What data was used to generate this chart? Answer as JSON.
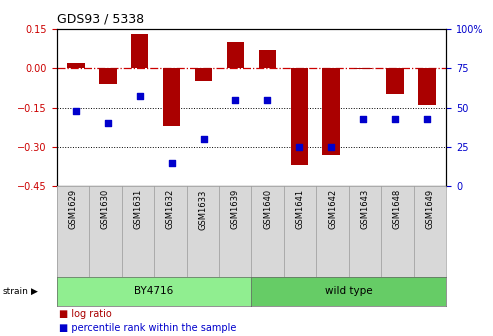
{
  "title": "GDS93 / 5338",
  "samples": [
    "GSM1629",
    "GSM1630",
    "GSM1631",
    "GSM1632",
    "GSM1633",
    "GSM1639",
    "GSM1640",
    "GSM1641",
    "GSM1642",
    "GSM1643",
    "GSM1648",
    "GSM1649"
  ],
  "log_ratio": [
    0.02,
    -0.06,
    0.13,
    -0.22,
    -0.05,
    0.1,
    0.07,
    -0.37,
    -0.33,
    -0.005,
    -0.1,
    -0.14
  ],
  "percentile": [
    48,
    40,
    57,
    15,
    30,
    55,
    55,
    25,
    25,
    43,
    43,
    43
  ],
  "strain_groups": [
    {
      "label": "BY4716",
      "start": 0,
      "end": 6,
      "color": "#90EE90"
    },
    {
      "label": "wild type",
      "start": 6,
      "end": 12,
      "color": "#66CC66"
    }
  ],
  "bar_color": "#AA0000",
  "dot_color": "#0000CC",
  "ylim_left": [
    -0.45,
    0.15
  ],
  "ylim_right": [
    0,
    100
  ],
  "yticks_left": [
    -0.45,
    -0.3,
    -0.15,
    0,
    0.15
  ],
  "yticks_right": [
    0,
    25,
    50,
    75,
    100
  ],
  "hline_color": "#CC0000",
  "dotted_lines": [
    -0.15,
    -0.3
  ],
  "bar_color_hex": "#AA0000",
  "dot_color_hex": "#0000CC",
  "tick_color_left": "#CC0000",
  "tick_color_right": "#0000CC",
  "cell_bg": "#D8D8D8",
  "strain_label": "strain"
}
